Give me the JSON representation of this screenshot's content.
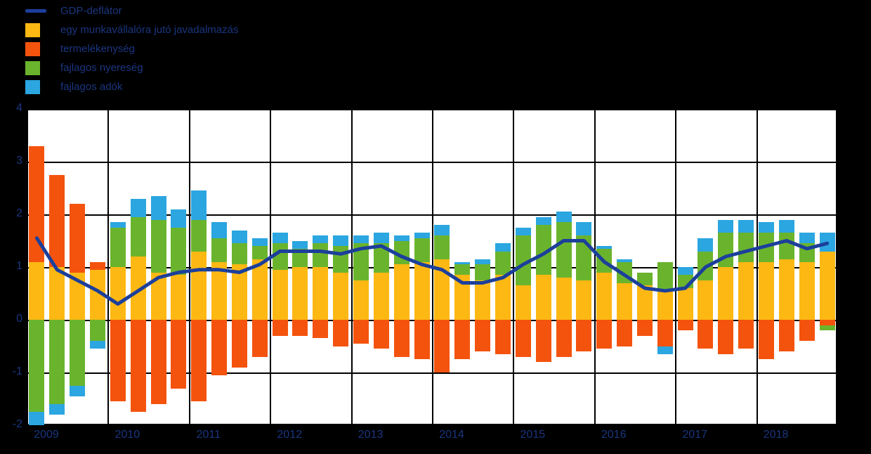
{
  "legend": {
    "items": [
      {
        "label": "GDP-deflátor",
        "color": "#1C3F9B",
        "marker": "line"
      },
      {
        "label": "egy munkavállalóra jutó javadalmazás",
        "color": "#FDB813",
        "marker": "square"
      },
      {
        "label": "termelékenység",
        "color": "#F4530E",
        "marker": "square"
      },
      {
        "label": "fajlagos nyereség",
        "color": "#6AB42D",
        "marker": "square"
      },
      {
        "label": "fajlagos adók",
        "color": "#2BA6E0",
        "marker": "square"
      }
    ]
  },
  "chart_data": {
    "type": "bar",
    "stacked": true,
    "title": "",
    "xlabel": "",
    "ylabel": "",
    "ylim": [
      -2,
      4
    ],
    "yticks": [
      4,
      3,
      2,
      1,
      0,
      -1,
      -2
    ],
    "grid": true,
    "legend_position": "top-left",
    "x_years": [
      "2009",
      "2010",
      "2011",
      "2012",
      "2013",
      "2014",
      "2015",
      "2016",
      "2017",
      "2018"
    ],
    "quarters_per_year": 4,
    "series": [
      {
        "name": "egy munkavállalóra jutó javadalmazás",
        "color": "#FDB813",
        "values": [
          1.1,
          1.0,
          0.9,
          0.95,
          1.0,
          1.2,
          0.9,
          0.85,
          1.3,
          1.1,
          1.05,
          1.15,
          0.95,
          1.0,
          1.0,
          0.9,
          0.75,
          0.9,
          1.05,
          1.1,
          1.15,
          0.85,
          0.75,
          0.85,
          0.65,
          0.85,
          0.8,
          0.75,
          0.9,
          0.7,
          0.65,
          0.55,
          0.6,
          0.75,
          1.0,
          1.1,
          1.1,
          1.15,
          1.1,
          1.3
        ]
      },
      {
        "name": "termelékenység",
        "color": "#F4530E",
        "values": [
          2.2,
          1.75,
          1.3,
          0.15,
          -1.55,
          -1.75,
          -1.6,
          -1.3,
          -1.55,
          -1.05,
          -0.9,
          -0.7,
          -0.3,
          -0.3,
          -0.35,
          -0.5,
          -0.45,
          -0.55,
          -0.7,
          -0.75,
          -1.0,
          -0.75,
          -0.6,
          -0.65,
          -0.7,
          -0.8,
          -0.7,
          -0.6,
          -0.55,
          -0.5,
          -0.3,
          -0.5,
          -0.2,
          -0.55,
          -0.65,
          -0.55,
          -0.75,
          -0.6,
          -0.4,
          -0.1
        ]
      },
      {
        "name": "fajlagos nyereség",
        "color": "#6AB42D",
        "values": [
          -1.75,
          -1.6,
          -1.25,
          -0.4,
          0.75,
          0.75,
          1.0,
          0.9,
          0.6,
          0.45,
          0.4,
          0.25,
          0.5,
          0.35,
          0.45,
          0.5,
          0.7,
          0.55,
          0.45,
          0.45,
          0.45,
          0.2,
          0.3,
          0.45,
          0.95,
          0.95,
          1.05,
          0.85,
          0.45,
          0.4,
          0.25,
          0.55,
          0.25,
          0.55,
          0.65,
          0.55,
          0.55,
          0.5,
          0.35,
          -0.1
        ]
      },
      {
        "name": "fajlagos adók",
        "color": "#2BA6E0",
        "values": [
          -0.25,
          -0.2,
          -0.2,
          -0.15,
          0.1,
          0.35,
          0.45,
          0.35,
          0.55,
          0.3,
          0.25,
          0.15,
          0.2,
          0.15,
          0.15,
          0.2,
          0.15,
          0.2,
          0.1,
          0.1,
          0.2,
          0.05,
          0.1,
          0.15,
          0.15,
          0.15,
          0.2,
          0.25,
          0.05,
          0.05,
          0.0,
          -0.15,
          0.15,
          0.25,
          0.25,
          0.25,
          0.2,
          0.25,
          0.2,
          0.35
        ]
      }
    ],
    "line_series": {
      "name": "GDP-deflátor",
      "color": "#1C3F9B",
      "values": [
        1.55,
        0.95,
        0.75,
        0.55,
        0.3,
        0.55,
        0.8,
        0.9,
        0.95,
        0.95,
        0.9,
        1.05,
        1.3,
        1.3,
        1.3,
        1.25,
        1.35,
        1.4,
        1.2,
        1.05,
        0.95,
        0.7,
        0.7,
        0.8,
        1.05,
        1.25,
        1.5,
        1.5,
        1.1,
        0.85,
        0.6,
        0.55,
        0.6,
        1.0,
        1.2,
        1.3,
        1.4,
        1.5,
        1.35,
        1.45
      ]
    }
  }
}
